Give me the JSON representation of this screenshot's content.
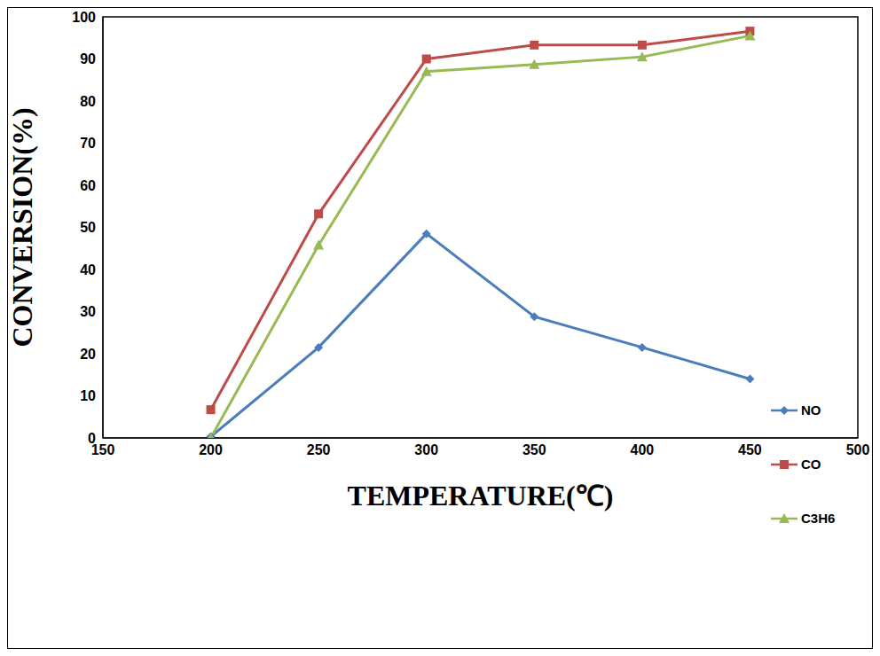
{
  "chart_data": {
    "type": "line",
    "x_label": "TEMPERATURE(℃)",
    "y_label": "CONVERSION(%)",
    "x": [
      200,
      250,
      300,
      350,
      400,
      450
    ],
    "series": [
      {
        "name": "NO",
        "color": "#4a7ebb",
        "marker": "diamond",
        "values": [
          0.3,
          21.5,
          48.5,
          28.8,
          21.5,
          14
        ]
      },
      {
        "name": "CO",
        "color": "#be4b48",
        "marker": "square",
        "values": [
          6.7,
          53.2,
          90,
          93.3,
          93.3,
          96.6
        ]
      },
      {
        "name": "C3H6",
        "color": "#98b954",
        "marker": "triangle",
        "values": [
          0,
          45.8,
          87,
          88.7,
          90.5,
          95.5
        ]
      }
    ],
    "xlim": [
      150,
      500
    ],
    "xticks": [
      150,
      200,
      250,
      300,
      350,
      400,
      450,
      500
    ],
    "ylim": [
      0,
      100
    ],
    "yticks": [
      0,
      10,
      20,
      30,
      40,
      50,
      60,
      70,
      80,
      90,
      100
    ],
    "grid": false,
    "legend": "right"
  }
}
